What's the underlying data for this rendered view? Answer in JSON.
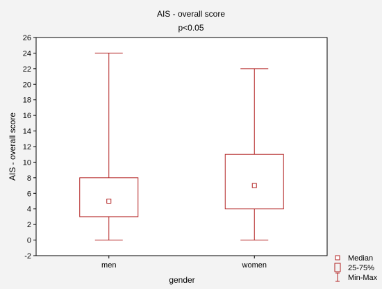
{
  "chart_data": {
    "type": "boxplot",
    "title": "AIS - overall score",
    "subtitle": "p<0.05",
    "xlabel": "gender",
    "ylabel": "AIS - overall score",
    "ylim": [
      -2,
      26
    ],
    "yticks": [
      -2,
      0,
      2,
      4,
      6,
      8,
      10,
      12,
      14,
      16,
      18,
      20,
      22,
      24,
      26
    ],
    "grid": false,
    "legend_position": "bottom-right",
    "categories": [
      "men",
      "women"
    ],
    "boxes": [
      {
        "category": "men",
        "min": 0,
        "q1": 3,
        "median": 5,
        "q3": 8,
        "max": 24
      },
      {
        "category": "women",
        "min": 0,
        "q1": 4,
        "median": 7,
        "q3": 11,
        "max": 22
      }
    ],
    "legend": [
      {
        "symbol": "small-square",
        "label": "Median"
      },
      {
        "symbol": "box",
        "label": "25-75%"
      },
      {
        "symbol": "whisker",
        "label": "Min-Max"
      }
    ],
    "colors": {
      "series": "#b22222",
      "background": "#f3f3f3",
      "plot_background": "#ffffff",
      "axes": "#000000"
    }
  }
}
